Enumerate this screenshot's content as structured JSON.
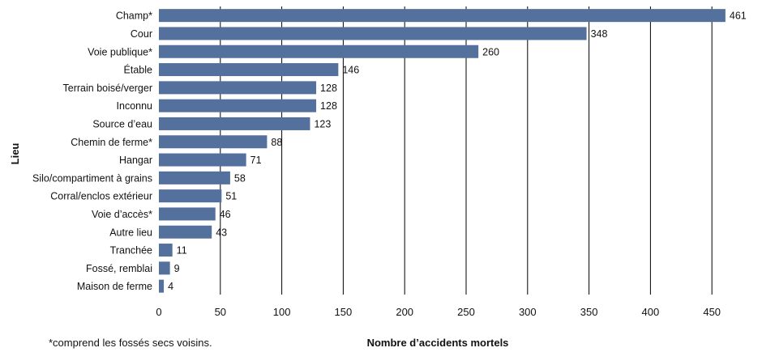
{
  "chart_data": {
    "type": "bar",
    "orientation": "horizontal",
    "categories": [
      "Champ*",
      "Cour",
      "Voie publique*",
      "Étable",
      "Terrain boisé/verger",
      "Inconnu",
      "Source d’eau",
      "Chemin de ferme*",
      "Hangar",
      "Silo/compartiment à grains",
      "Corral/enclos extérieur",
      "Voie d’accès*",
      "Autre lieu",
      "Tranchée",
      "Fossé, remblai",
      "Maison de ferme"
    ],
    "values": [
      461,
      348,
      260,
      146,
      128,
      128,
      123,
      88,
      71,
      58,
      51,
      46,
      43,
      11,
      9,
      4
    ],
    "xlabel": "Nombre d’accidents mortels",
    "ylabel": "Lieu",
    "xlim": [
      0,
      460
    ],
    "xticks": [
      0,
      50,
      100,
      150,
      200,
      250,
      300,
      350,
      400,
      450
    ],
    "grid": "vertical",
    "bar_color": "#54709c",
    "footnote": "*comprend les fossés secs voisins."
  }
}
